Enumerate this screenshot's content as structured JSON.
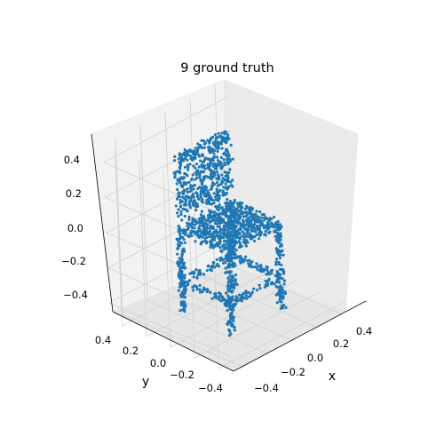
{
  "chart_data": {
    "type": "scatter",
    "projection": "3d",
    "title": "9 ground truth",
    "xlabel": "x",
    "ylabel": "y",
    "zlabel": "",
    "xlim": [
      -0.5,
      0.5
    ],
    "ylim": [
      -0.5,
      0.5
    ],
    "zlim": [
      -0.5,
      0.5
    ],
    "x_ticks": [
      "−0.4",
      "−0.2",
      "0.0",
      "0.2",
      "0.4"
    ],
    "y_ticks": [
      "0.4",
      "0.2",
      "0.0",
      "−0.2",
      "−0.4"
    ],
    "z_ticks": [
      "0.4",
      "0.2",
      "0.0",
      "−0.2",
      "−0.4"
    ],
    "grid": true,
    "point_color": "#1f77b4",
    "pane_color": "#f2f2f2",
    "grid_color": "#d0d0d0",
    "series": [
      {
        "shape": "chair",
        "points": 2048,
        "seat": {
          "x": [
            -0.22,
            0.22
          ],
          "y": [
            -0.22,
            0.22
          ],
          "z": 0.0
        },
        "backrest": {
          "x": [
            -0.22,
            0.22
          ],
          "y": 0.2,
          "z": [
            0.05,
            0.42
          ]
        },
        "legs": [
          {
            "x": -0.2,
            "y": -0.2,
            "z": [
              -0.48,
              0.0
            ]
          },
          {
            "x": 0.2,
            "y": -0.2,
            "z": [
              -0.48,
              0.0
            ]
          },
          {
            "x": -0.2,
            "y": 0.2,
            "z": [
              -0.48,
              0.0
            ]
          },
          {
            "x": 0.2,
            "y": 0.2,
            "z": [
              -0.48,
              0.0
            ]
          }
        ],
        "stretcher_z": -0.3
      }
    ]
  }
}
